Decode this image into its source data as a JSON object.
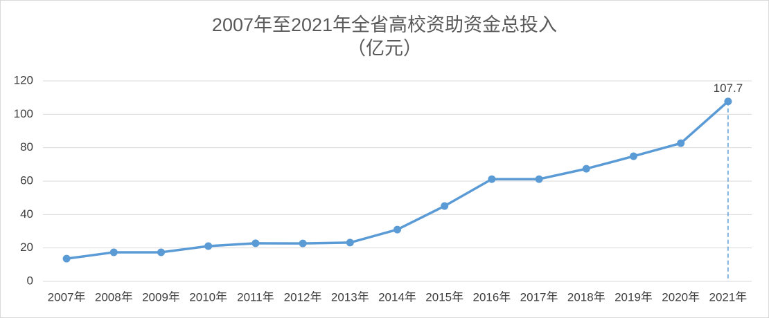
{
  "chart_data": {
    "type": "line",
    "title": "2007年至2021年全省高校资助资金总投入",
    "subtitle": "（亿元）",
    "categories": [
      "2007年",
      "2008年",
      "2009年",
      "2010年",
      "2011年",
      "2012年",
      "2013年",
      "2014年",
      "2015年",
      "2016年",
      "2017年",
      "2018年",
      "2019年",
      "2020年",
      "2021年"
    ],
    "series": [
      {
        "name": "资助资金总投入",
        "color": "#5b9bd5",
        "values": [
          13.6,
          17.4,
          17.4,
          21.1,
          22.8,
          22.7,
          23.2,
          31,
          45.1,
          61.2,
          61.2,
          67.4,
          74.9,
          82.7,
          107.7
        ]
      }
    ],
    "ylim": [
      0,
      120
    ],
    "yticks": [
      0,
      20,
      40,
      60,
      80,
      100,
      120
    ],
    "grid": true,
    "data_labels": "last"
  }
}
